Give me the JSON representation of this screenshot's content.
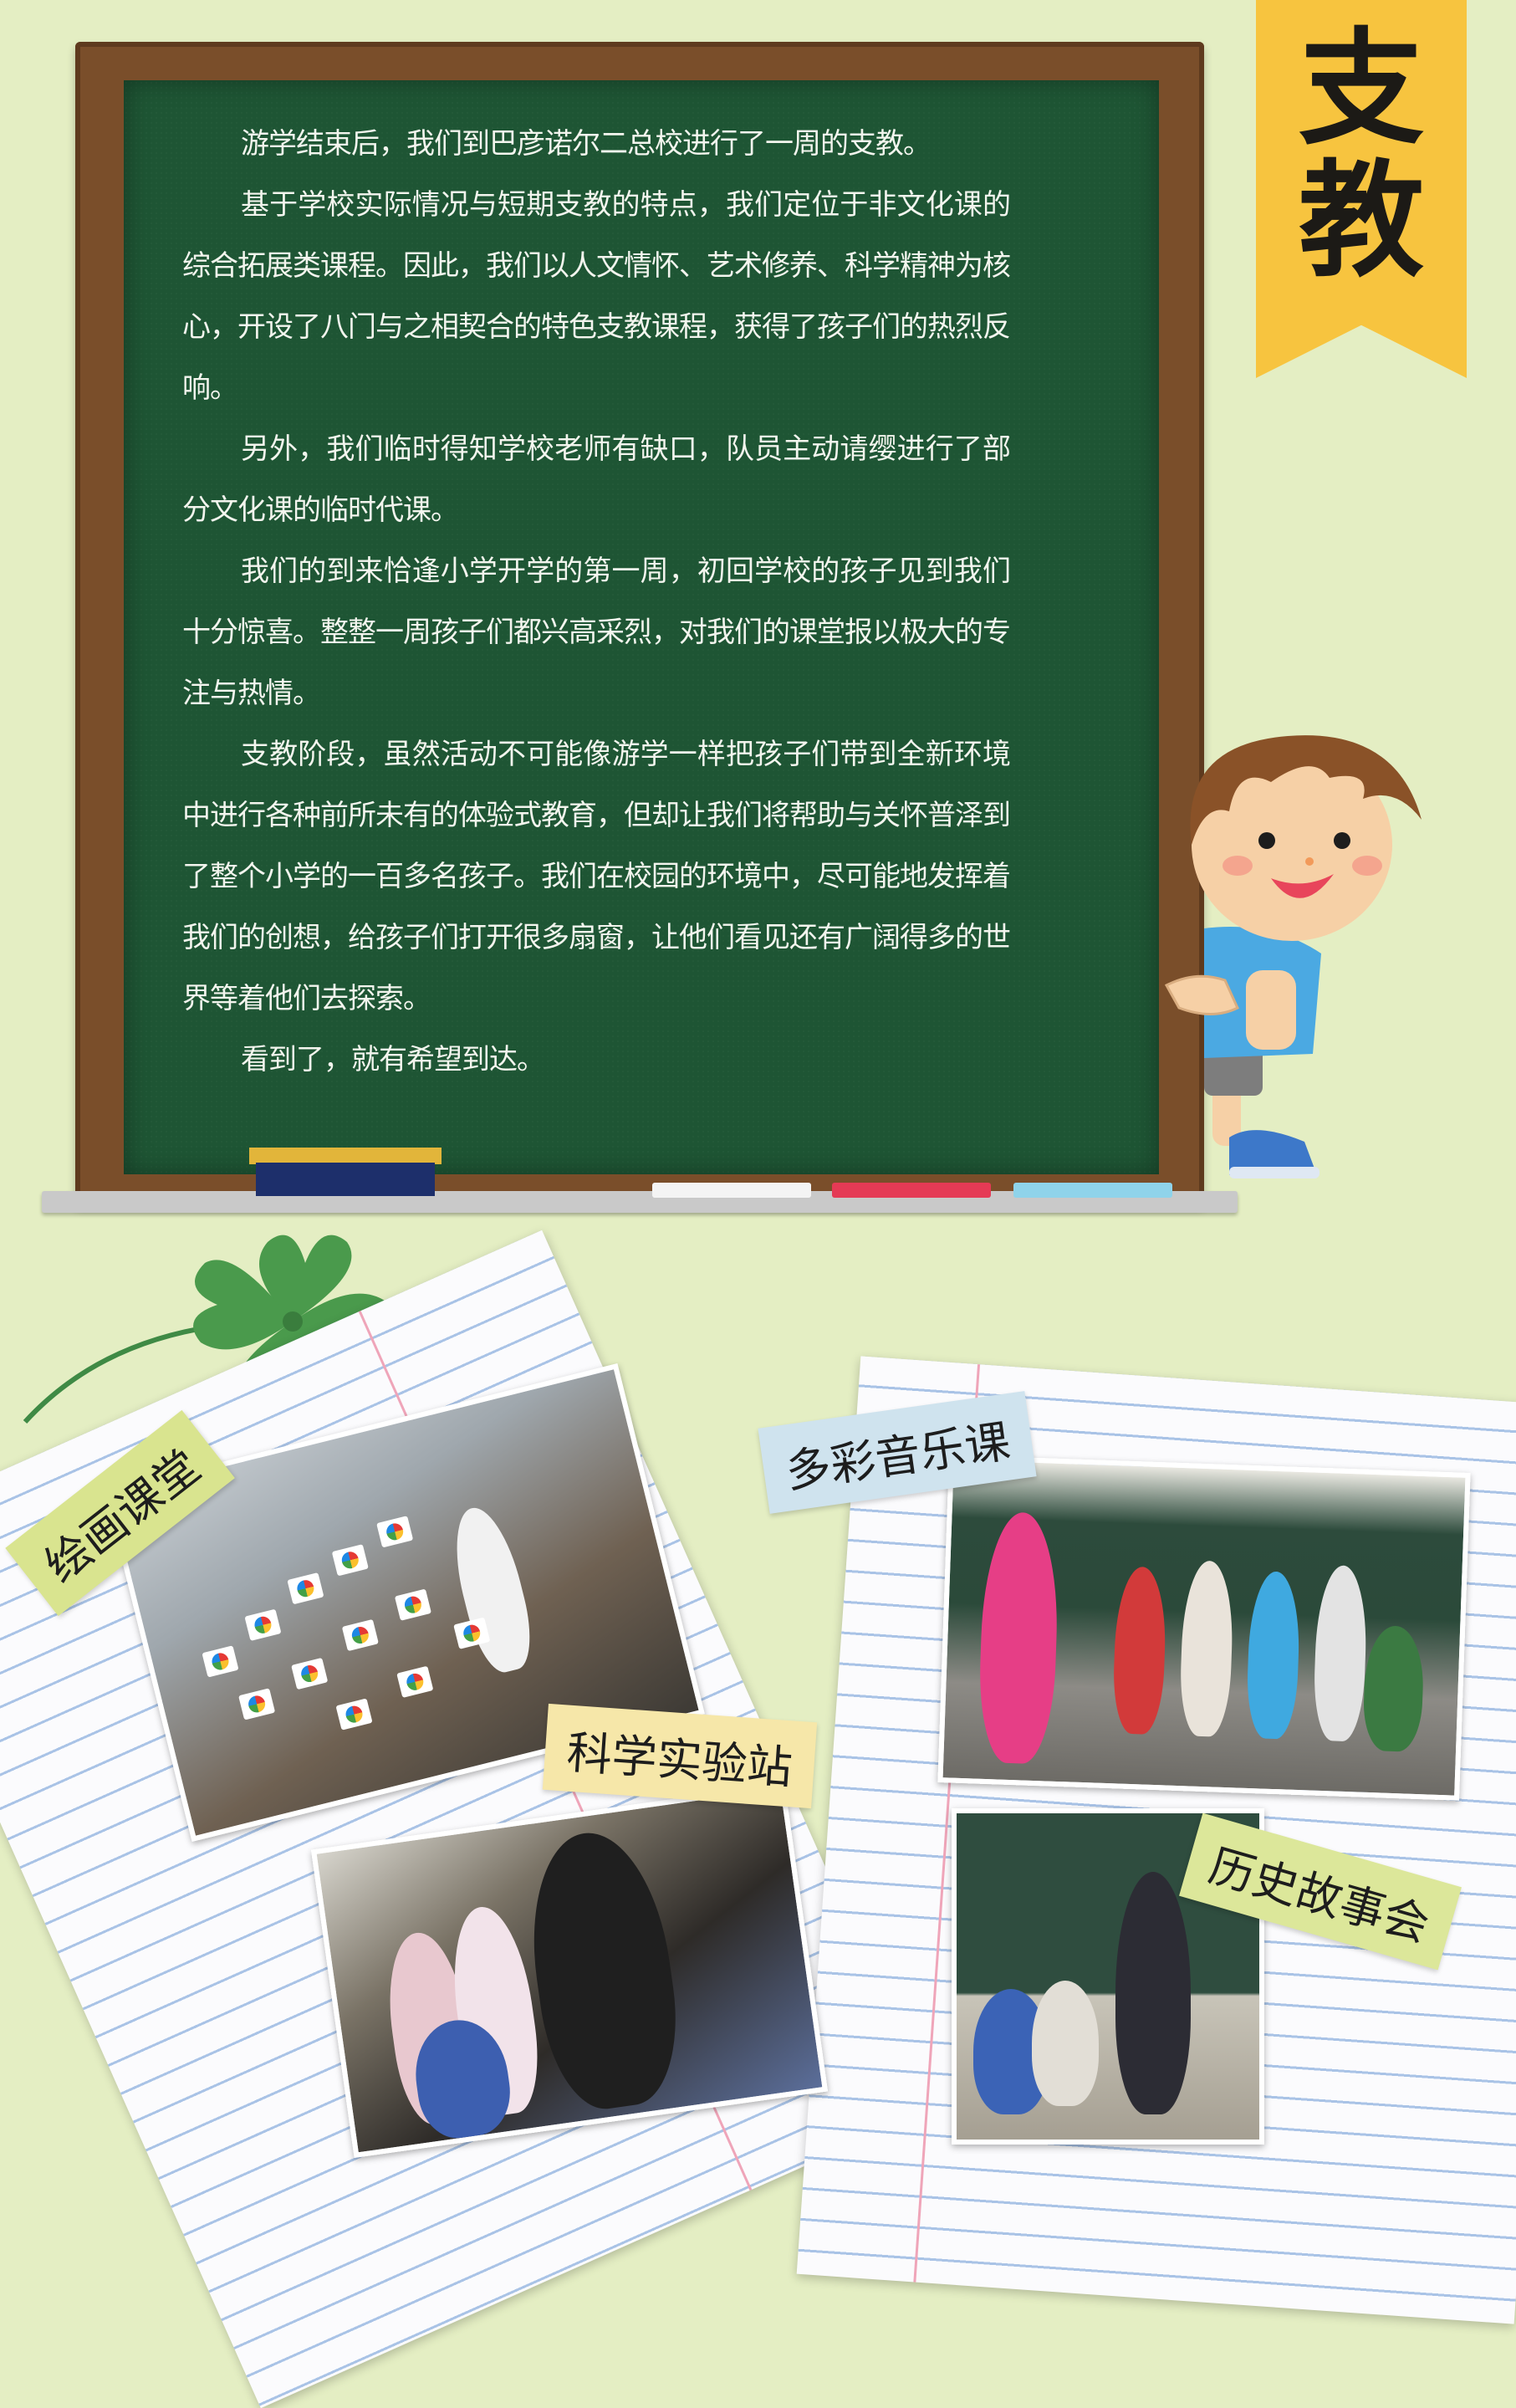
{
  "banner": {
    "line1": "支",
    "line2": "教"
  },
  "board": {
    "paragraphs": [
      "游学结束后，我们到巴彦诺尔二总校进行了一周的支教。",
      "基于学校实际情况与短期支教的特点，我们定位于非文化课的综合拓展类课程。因此，我们以人文情怀、艺术修养、科学精神为核心，开设了八门与之相契合的特色支教课程，获得了孩子们的热烈反响。",
      "另外，我们临时得知学校老师有缺口，队员主动请缨进行了部分文化课的临时代课。",
      "我们的到来恰逢小学开学的第一周，初回学校的孩子见到我们十分惊喜。整整一周孩子们都兴高采烈，对我们的课堂报以极大的专注与热情。",
      "支教阶段，虽然活动不可能像游学一样把孩子们带到全新环境中进行各种前所未有的体验式教育，但却让我们将帮助与关怀普泽到了整个小学的一百多名孩子。我们在校园的环境中，尽可能地发挥着我们的创想，给孩子们打开很多扇窗，让他们看见还有广阔得多的世界等着他们去探索。",
      "看到了，就有希望到达。"
    ]
  },
  "labels": {
    "drawing": "绘画课堂",
    "music": "多彩音乐课",
    "science": "科学实验站",
    "history": "历史故事会"
  },
  "colors": {
    "background": "#e4eec3",
    "banner": "#f7c43f",
    "board": "#1e5534",
    "frame": "#7a4e2a"
  },
  "icons": [
    "clover-icon",
    "cartoon-boy-illustration"
  ]
}
